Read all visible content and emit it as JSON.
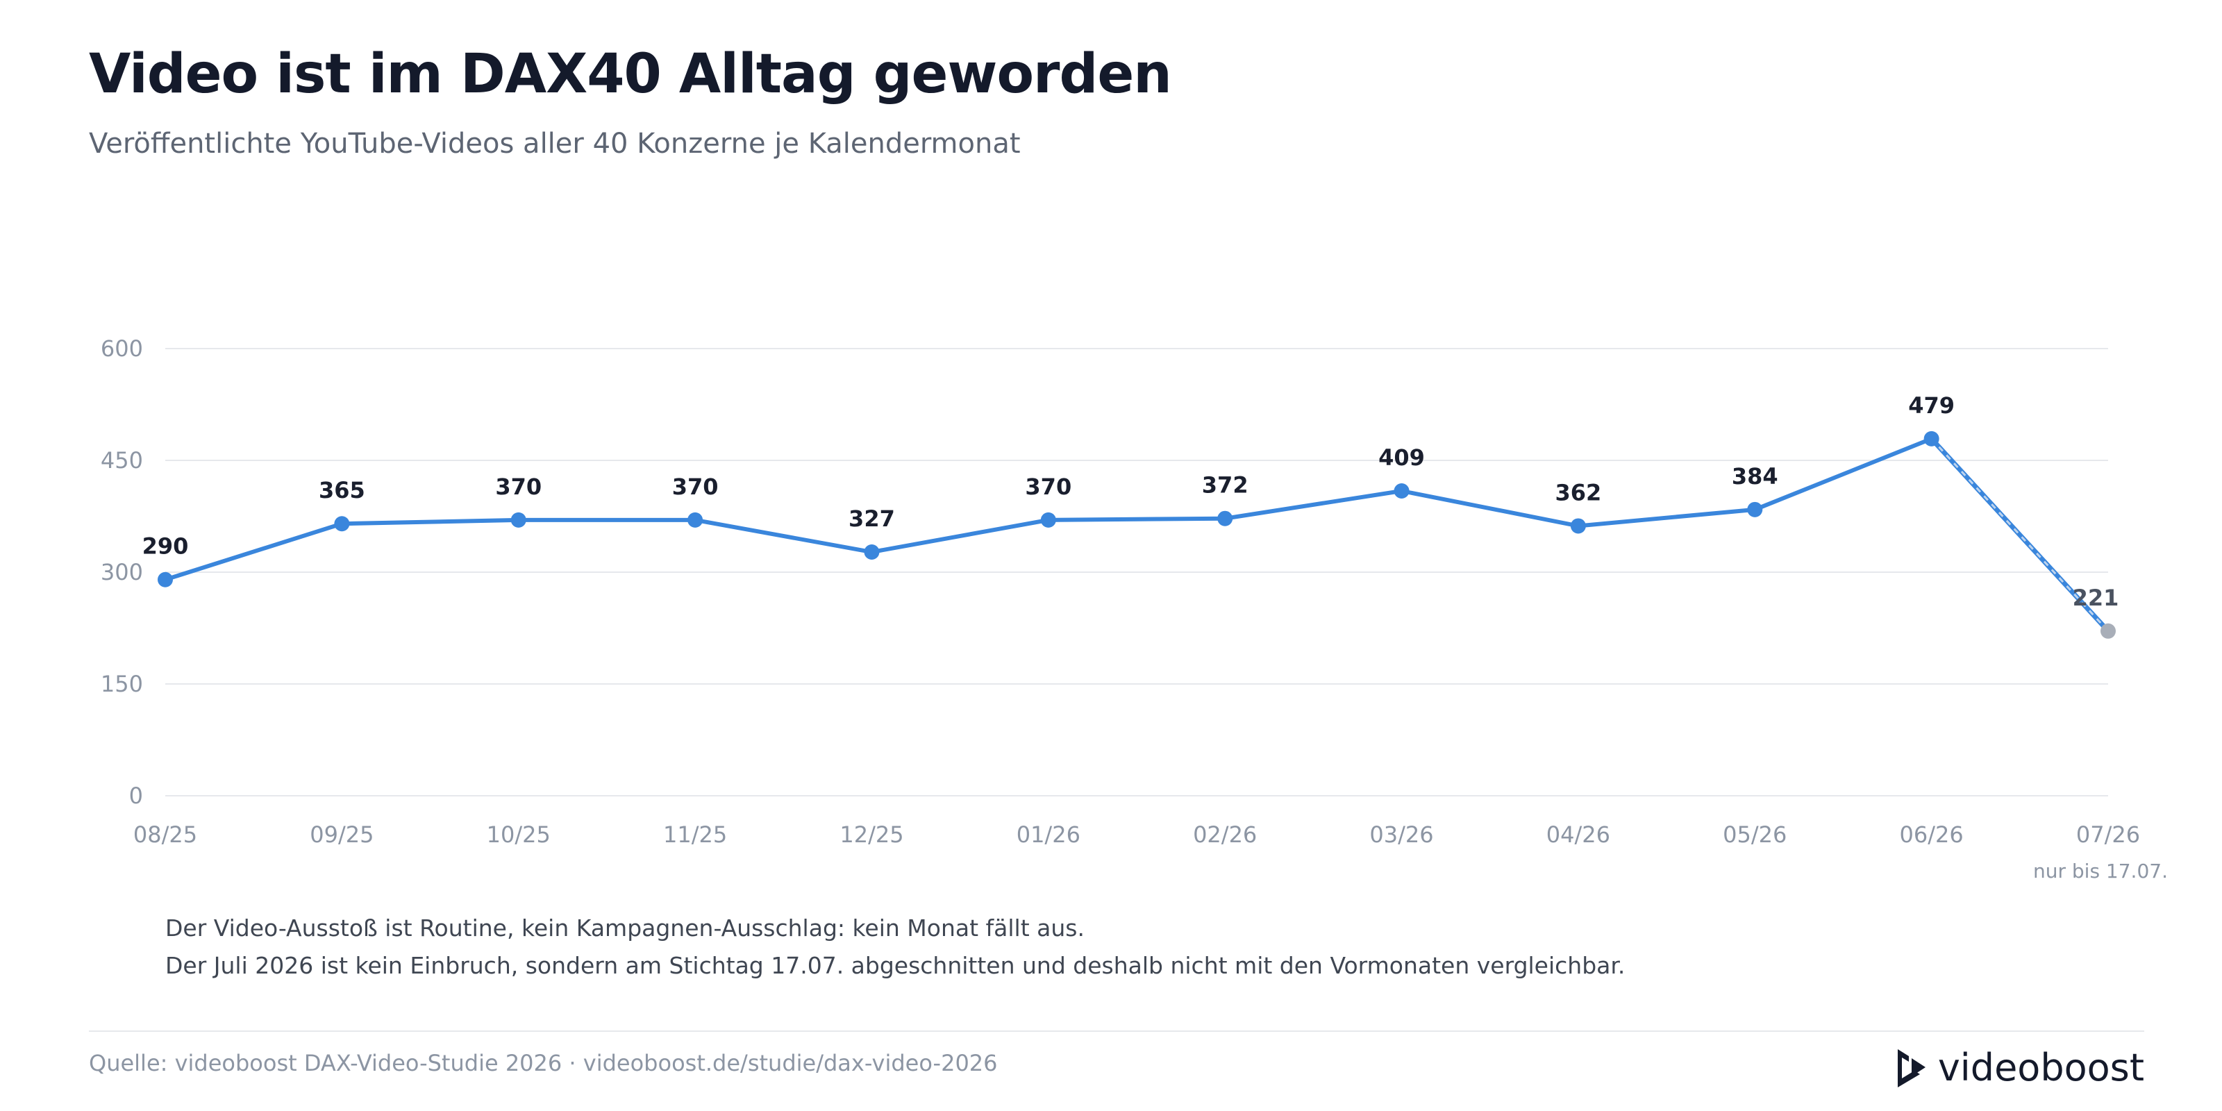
{
  "header": {
    "title": "Video ist im DAX40 Alltag geworden",
    "subtitle": "Veröffentlichte YouTube-Videos aller 40 Konzerne je Kalendermonat"
  },
  "chart_data": {
    "type": "line",
    "categories": [
      "08/25",
      "09/25",
      "10/25",
      "11/25",
      "12/25",
      "01/26",
      "02/26",
      "03/26",
      "04/26",
      "05/26",
      "06/26",
      "07/26"
    ],
    "values": [
      290,
      365,
      370,
      370,
      327,
      370,
      372,
      409,
      362,
      384,
      479,
      221
    ],
    "y_ticks": [
      0,
      150,
      300,
      450,
      600
    ],
    "ylim": [
      0,
      600
    ],
    "grid": true,
    "partial_point": {
      "category": "07/26",
      "note": "nur bis 17.07."
    },
    "colors": {
      "line": "#3a86dc",
      "partial_point": "#a8aeb8",
      "grid": "#e6e8ec"
    }
  },
  "notes": [
    "Der Video-Ausstoß ist Routine, kein Kampagnen-Ausschlag: kein Monat fällt aus.",
    "Der Juli 2026 ist kein Einbruch, sondern am Stichtag 17.07. abgeschnitten und deshalb nicht mit den Vormonaten vergleichbar."
  ],
  "footer": {
    "source": "Quelle: videoboost DAX-Video-Studie 2026 · videoboost.de/studie/dax-video-2026",
    "logo_text": "videoboost",
    "logo_icon": "play-arrow-icon"
  }
}
